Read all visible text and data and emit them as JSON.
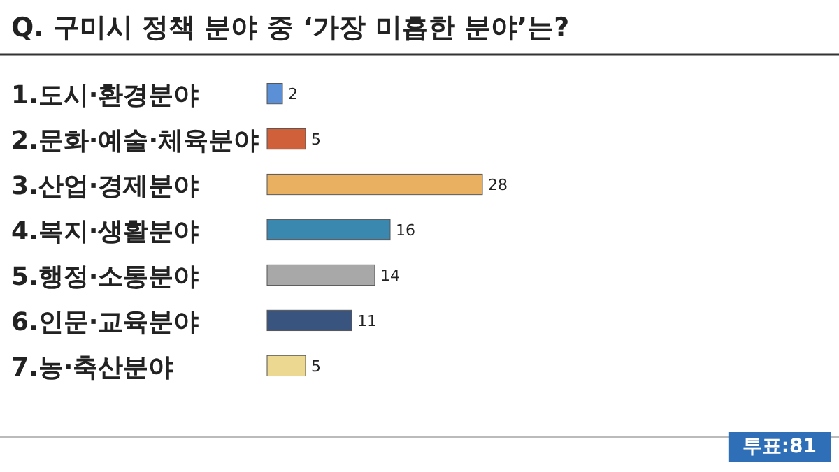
{
  "chart_data": {
    "type": "bar",
    "orientation": "horizontal",
    "title": "Q. 구미시 정책 분야 중 ‘가장 미흡한 분야’는?",
    "categories": [
      "1.도시·환경분야",
      "2.문화·예술·체육분야",
      "3.산업·경제분야",
      "4.복지·생활분야",
      "5.행정·소통분야",
      "6.인문·교육분야",
      "7.농·축산분야"
    ],
    "values": [
      2,
      5,
      28,
      16,
      14,
      11,
      5
    ],
    "colors": [
      "#5b8fd6",
      "#d0603a",
      "#e8b060",
      "#3a88b0",
      "#a8a8a8",
      "#3a5480",
      "#ecd890"
    ],
    "data_labels": true,
    "annotations": [
      "투표:81"
    ]
  }
}
